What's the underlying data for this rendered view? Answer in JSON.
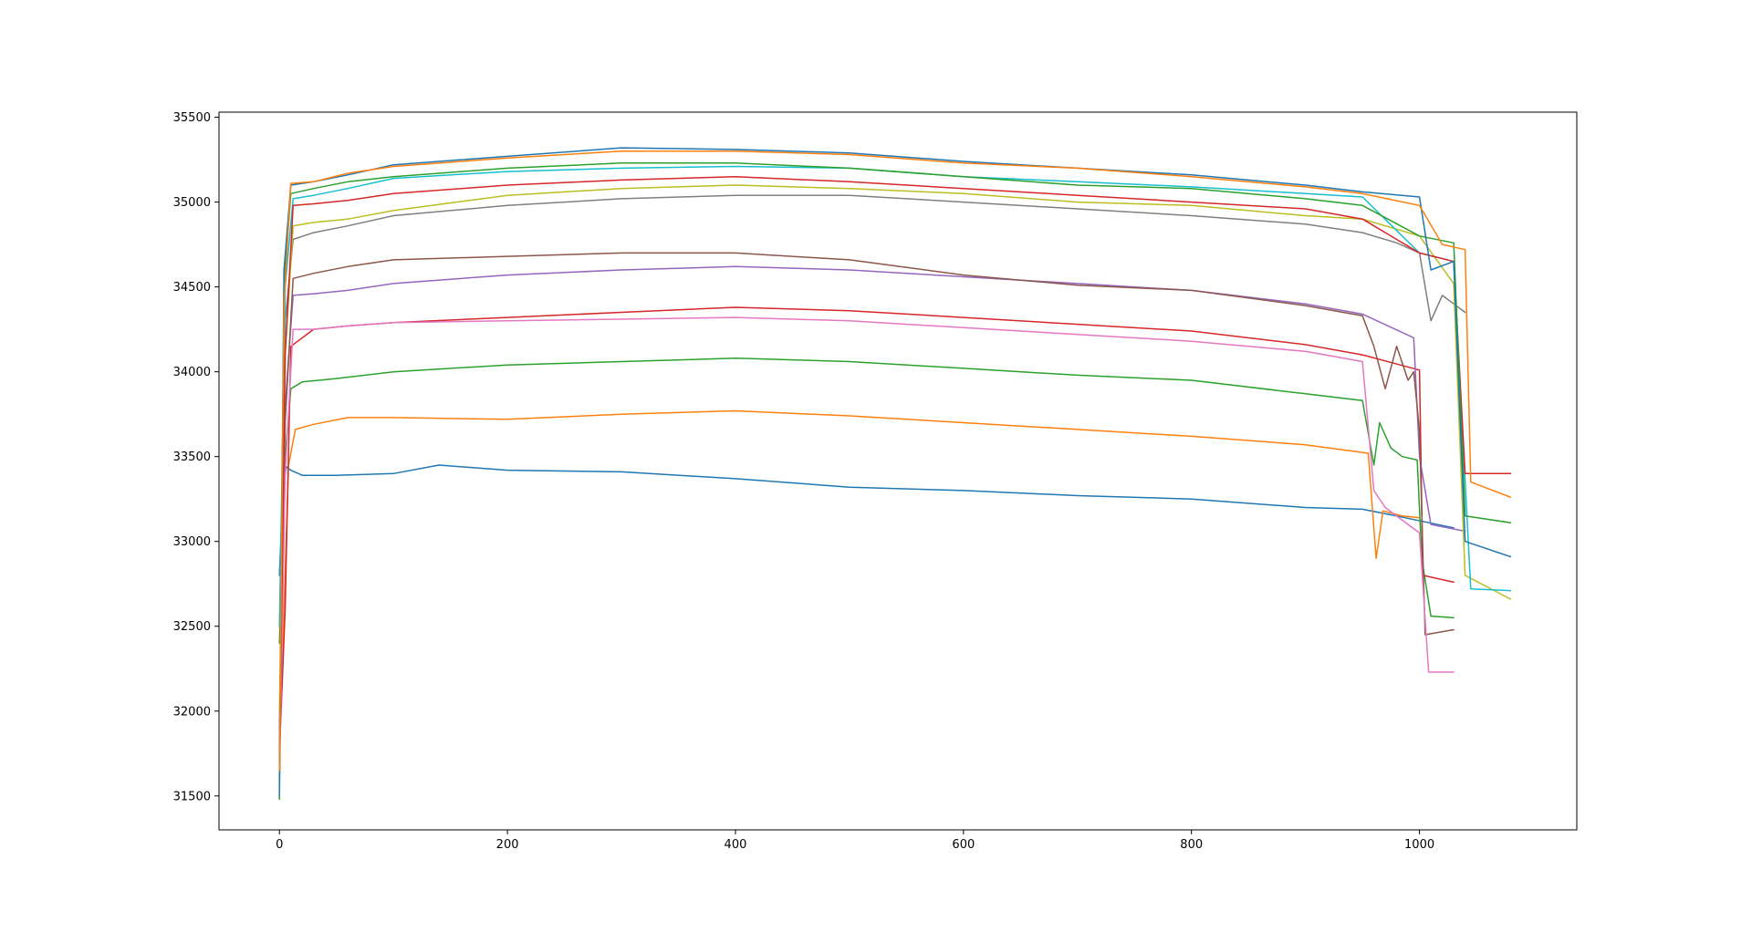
{
  "chart_data": {
    "type": "line",
    "title": "",
    "xlabel": "",
    "ylabel": "",
    "xlim": [
      -53,
      1138
    ],
    "ylim": [
      31300,
      35530
    ],
    "xticks": [
      0,
      200,
      400,
      600,
      800,
      1000
    ],
    "xtick_labels": [
      "0",
      "200",
      "400",
      "600",
      "800",
      "1000"
    ],
    "yticks": [
      31500,
      32000,
      32500,
      33000,
      33500,
      34000,
      34500,
      35000,
      35500
    ],
    "ytick_labels": [
      "31500",
      "32000",
      "32500",
      "33000",
      "33500",
      "34000",
      "34500",
      "35000",
      "35500"
    ],
    "grid": false,
    "legend": "none",
    "series": [
      {
        "color": "#1f77b4",
        "points": [
          [
            0,
            32800
          ],
          [
            3,
            33300
          ],
          [
            6,
            33440
          ],
          [
            10,
            33420
          ],
          [
            20,
            33390
          ],
          [
            50,
            33390
          ],
          [
            100,
            33400
          ],
          [
            140,
            33450
          ],
          [
            200,
            33420
          ],
          [
            300,
            33410
          ],
          [
            400,
            33370
          ],
          [
            500,
            33320
          ],
          [
            600,
            33300
          ],
          [
            700,
            33270
          ],
          [
            800,
            33250
          ],
          [
            900,
            33200
          ],
          [
            950,
            33190
          ],
          [
            980,
            33150
          ],
          [
            1030,
            33080
          ]
        ]
      },
      {
        "color": "#ff7f0e",
        "points": [
          [
            0,
            31900
          ],
          [
            4,
            32600
          ],
          [
            8,
            33450
          ],
          [
            14,
            33660
          ],
          [
            30,
            33690
          ],
          [
            60,
            33730
          ],
          [
            100,
            33730
          ],
          [
            200,
            33720
          ],
          [
            300,
            33750
          ],
          [
            400,
            33770
          ],
          [
            500,
            33740
          ],
          [
            600,
            33700
          ],
          [
            700,
            33660
          ],
          [
            800,
            33620
          ],
          [
            900,
            33570
          ],
          [
            955,
            33520
          ],
          [
            962,
            32900
          ],
          [
            968,
            33180
          ],
          [
            985,
            33150
          ],
          [
            1000,
            33140
          ]
        ]
      },
      {
        "color": "#2ca02c",
        "points": [
          [
            0,
            32400
          ],
          [
            5,
            33500
          ],
          [
            10,
            33900
          ],
          [
            20,
            33940
          ],
          [
            50,
            33960
          ],
          [
            100,
            34000
          ],
          [
            200,
            34040
          ],
          [
            300,
            34060
          ],
          [
            400,
            34080
          ],
          [
            500,
            34060
          ],
          [
            600,
            34020
          ],
          [
            700,
            33980
          ],
          [
            800,
            33950
          ],
          [
            900,
            33870
          ],
          [
            950,
            33830
          ],
          [
            960,
            33450
          ],
          [
            965,
            33700
          ],
          [
            975,
            33550
          ],
          [
            985,
            33500
          ],
          [
            998,
            33480
          ],
          [
            1002,
            32900
          ],
          [
            1010,
            32560
          ],
          [
            1030,
            32550
          ]
        ]
      },
      {
        "color": "#d62728",
        "points": [
          [
            0,
            31750
          ],
          [
            5,
            32600
          ],
          [
            10,
            34150
          ],
          [
            30,
            34250
          ],
          [
            60,
            34270
          ],
          [
            100,
            34290
          ],
          [
            200,
            34320
          ],
          [
            300,
            34350
          ],
          [
            400,
            34380
          ],
          [
            500,
            34360
          ],
          [
            600,
            34320
          ],
          [
            700,
            34280
          ],
          [
            800,
            34240
          ],
          [
            900,
            34160
          ],
          [
            950,
            34100
          ],
          [
            1000,
            34010
          ],
          [
            1003,
            32800
          ],
          [
            1030,
            32760
          ]
        ]
      },
      {
        "color": "#9467bd",
        "points": [
          [
            0,
            31900
          ],
          [
            5,
            33800
          ],
          [
            12,
            34450
          ],
          [
            30,
            34460
          ],
          [
            60,
            34480
          ],
          [
            100,
            34520
          ],
          [
            200,
            34570
          ],
          [
            300,
            34600
          ],
          [
            400,
            34620
          ],
          [
            500,
            34600
          ],
          [
            600,
            34560
          ],
          [
            700,
            34520
          ],
          [
            800,
            34480
          ],
          [
            900,
            34400
          ],
          [
            950,
            34340
          ],
          [
            995,
            34200
          ],
          [
            1000,
            33500
          ],
          [
            1010,
            33100
          ],
          [
            1040,
            33060
          ]
        ]
      },
      {
        "color": "#8c564b",
        "points": [
          [
            0,
            31700
          ],
          [
            5,
            33700
          ],
          [
            12,
            34550
          ],
          [
            30,
            34580
          ],
          [
            60,
            34620
          ],
          [
            100,
            34660
          ],
          [
            200,
            34680
          ],
          [
            300,
            34700
          ],
          [
            400,
            34700
          ],
          [
            500,
            34660
          ],
          [
            600,
            34570
          ],
          [
            700,
            34510
          ],
          [
            800,
            34480
          ],
          [
            900,
            34390
          ],
          [
            950,
            34330
          ],
          [
            960,
            34150
          ],
          [
            970,
            33900
          ],
          [
            980,
            34150
          ],
          [
            990,
            33950
          ],
          [
            995,
            34000
          ],
          [
            1000,
            33650
          ],
          [
            1005,
            32450
          ],
          [
            1030,
            32480
          ]
        ]
      },
      {
        "color": "#e377c2",
        "points": [
          [
            0,
            31600
          ],
          [
            5,
            33400
          ],
          [
            12,
            34250
          ],
          [
            30,
            34250
          ],
          [
            60,
            34270
          ],
          [
            100,
            34290
          ],
          [
            200,
            34300
          ],
          [
            300,
            34310
          ],
          [
            400,
            34320
          ],
          [
            500,
            34300
          ],
          [
            600,
            34260
          ],
          [
            700,
            34220
          ],
          [
            800,
            34180
          ],
          [
            900,
            34120
          ],
          [
            950,
            34060
          ],
          [
            960,
            33300
          ],
          [
            970,
            33200
          ],
          [
            990,
            33100
          ],
          [
            1000,
            33050
          ],
          [
            1008,
            32230
          ],
          [
            1030,
            32230
          ]
        ]
      },
      {
        "color": "#7f7f7f",
        "points": [
          [
            0,
            31800
          ],
          [
            5,
            34300
          ],
          [
            12,
            34780
          ],
          [
            30,
            34820
          ],
          [
            60,
            34860
          ],
          [
            100,
            34920
          ],
          [
            200,
            34980
          ],
          [
            300,
            35020
          ],
          [
            400,
            35040
          ],
          [
            500,
            35040
          ],
          [
            600,
            35000
          ],
          [
            700,
            34960
          ],
          [
            800,
            34920
          ],
          [
            900,
            34870
          ],
          [
            950,
            34820
          ],
          [
            980,
            34760
          ],
          [
            1000,
            34700
          ],
          [
            1010,
            34300
          ],
          [
            1020,
            34450
          ],
          [
            1030,
            34400
          ],
          [
            1040,
            34350
          ]
        ]
      },
      {
        "color": "#bcbd22",
        "points": [
          [
            0,
            32000
          ],
          [
            5,
            34100
          ],
          [
            12,
            34860
          ],
          [
            30,
            34880
          ],
          [
            60,
            34900
          ],
          [
            100,
            34950
          ],
          [
            200,
            35040
          ],
          [
            300,
            35080
          ],
          [
            400,
            35100
          ],
          [
            500,
            35080
          ],
          [
            600,
            35050
          ],
          [
            700,
            35000
          ],
          [
            800,
            34980
          ],
          [
            900,
            34920
          ],
          [
            950,
            34900
          ],
          [
            1000,
            34800
          ],
          [
            1030,
            34520
          ],
          [
            1040,
            32800
          ],
          [
            1080,
            32660
          ]
        ]
      },
      {
        "color": "#17becf",
        "points": [
          [
            0,
            32500
          ],
          [
            5,
            34500
          ],
          [
            12,
            35020
          ],
          [
            30,
            35040
          ],
          [
            60,
            35080
          ],
          [
            100,
            35140
          ],
          [
            200,
            35180
          ],
          [
            300,
            35200
          ],
          [
            400,
            35210
          ],
          [
            500,
            35200
          ],
          [
            600,
            35150
          ],
          [
            700,
            35120
          ],
          [
            800,
            35090
          ],
          [
            900,
            35050
          ],
          [
            950,
            35030
          ],
          [
            1000,
            34700
          ],
          [
            1030,
            34650
          ],
          [
            1045,
            32720
          ],
          [
            1080,
            32710
          ]
        ]
      },
      {
        "color": "#d62728",
        "points": [
          [
            0,
            31700
          ],
          [
            5,
            34100
          ],
          [
            12,
            34980
          ],
          [
            30,
            34990
          ],
          [
            60,
            35010
          ],
          [
            100,
            35050
          ],
          [
            200,
            35100
          ],
          [
            300,
            35130
          ],
          [
            400,
            35150
          ],
          [
            500,
            35120
          ],
          [
            600,
            35080
          ],
          [
            700,
            35040
          ],
          [
            800,
            35000
          ],
          [
            900,
            34960
          ],
          [
            950,
            34900
          ],
          [
            1000,
            34700
          ],
          [
            1030,
            34650
          ],
          [
            1040,
            33400
          ],
          [
            1080,
            33400
          ]
        ]
      },
      {
        "color": "#2ca02c",
        "points": [
          [
            0,
            31480
          ],
          [
            4,
            34500
          ],
          [
            10,
            35050
          ],
          [
            30,
            35080
          ],
          [
            60,
            35120
          ],
          [
            100,
            35150
          ],
          [
            200,
            35200
          ],
          [
            300,
            35230
          ],
          [
            400,
            35230
          ],
          [
            500,
            35200
          ],
          [
            600,
            35150
          ],
          [
            700,
            35100
          ],
          [
            800,
            35080
          ],
          [
            900,
            35020
          ],
          [
            950,
            34980
          ],
          [
            1000,
            34800
          ],
          [
            1030,
            34760
          ],
          [
            1040,
            33150
          ],
          [
            1080,
            33110
          ]
        ]
      },
      {
        "color": "#1f77b4",
        "points": [
          [
            0,
            31500
          ],
          [
            4,
            34600
          ],
          [
            10,
            35100
          ],
          [
            30,
            35120
          ],
          [
            60,
            35160
          ],
          [
            100,
            35220
          ],
          [
            200,
            35270
          ],
          [
            300,
            35320
          ],
          [
            400,
            35310
          ],
          [
            500,
            35290
          ],
          [
            600,
            35240
          ],
          [
            700,
            35200
          ],
          [
            800,
            35160
          ],
          [
            900,
            35100
          ],
          [
            950,
            35060
          ],
          [
            1000,
            35030
          ],
          [
            1010,
            34600
          ],
          [
            1030,
            34650
          ],
          [
            1040,
            33000
          ],
          [
            1080,
            32910
          ]
        ]
      },
      {
        "color": "#ff7f0e",
        "points": [
          [
            0,
            31650
          ],
          [
            4,
            34400
          ],
          [
            10,
            35110
          ],
          [
            30,
            35120
          ],
          [
            60,
            35170
          ],
          [
            100,
            35210
          ],
          [
            200,
            35260
          ],
          [
            300,
            35300
          ],
          [
            400,
            35300
          ],
          [
            500,
            35280
          ],
          [
            600,
            35230
          ],
          [
            700,
            35200
          ],
          [
            800,
            35150
          ],
          [
            900,
            35090
          ],
          [
            950,
            35050
          ],
          [
            1000,
            34980
          ],
          [
            1020,
            34750
          ],
          [
            1040,
            34720
          ],
          [
            1045,
            33350
          ],
          [
            1080,
            33260
          ]
        ]
      }
    ]
  }
}
